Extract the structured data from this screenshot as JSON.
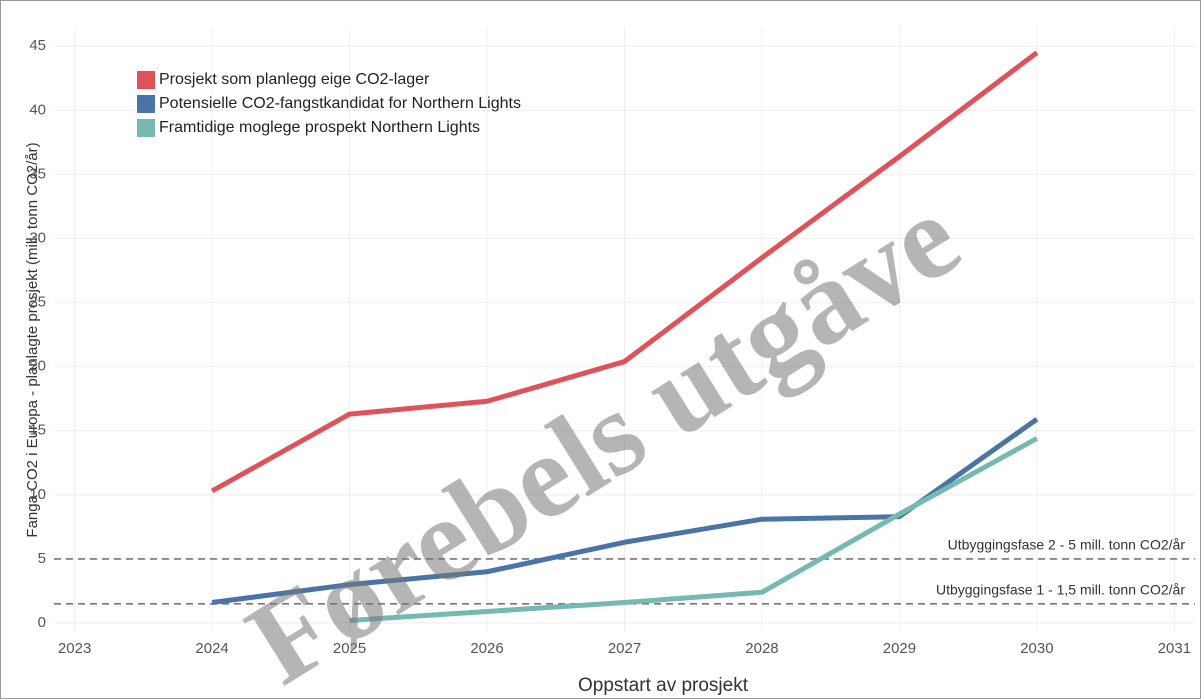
{
  "chart_data": {
    "type": "line",
    "x_label": "Oppstart av prosjekt",
    "y_label": "Fanga CO2 i Europa - planlagte prosjekt (mill. tonn CO2/år)",
    "x": [
      2024,
      2025,
      2026,
      2027,
      2028,
      2029,
      2030
    ],
    "series": [
      {
        "name": "Prosjekt som planlegg eige CO2-lager",
        "color": "#e0525a",
        "values": [
          10.3,
          16.3,
          17.3,
          20.4,
          28.5,
          36.4,
          44.5
        ]
      },
      {
        "name": "Potensielle CO2-fangstkandidat for Northern Lights",
        "color": "#4a73a6",
        "values": [
          1.6,
          3.0,
          4.0,
          6.3,
          8.1,
          8.3,
          15.9
        ]
      },
      {
        "name": "Framtidige moglege prospekt Northern Lights",
        "color": "#76b8b2",
        "values": [
          null,
          0.2,
          0.9,
          1.6,
          2.4,
          8.5,
          14.4
        ]
      }
    ],
    "xlim": [
      2022.85,
      2031.15
    ],
    "xticks": [
      2023,
      2024,
      2025,
      2026,
      2027,
      2028,
      2029,
      2030,
      2031
    ],
    "ylim": [
      -0.7,
      46.5
    ],
    "yticks": [
      0,
      5,
      10,
      15,
      20,
      25,
      30,
      35,
      40,
      45
    ],
    "grid": true,
    "legend": "top-left",
    "reference_lines": [
      {
        "value": 5,
        "label": "Utbyggingsfase 2 - 5 mill. tonn CO2/år"
      },
      {
        "value": 1.5,
        "label": "Utbyggingsfase 1 - 1,5 mill. tonn CO2/år"
      }
    ],
    "watermark": "Førebels utgåve"
  }
}
